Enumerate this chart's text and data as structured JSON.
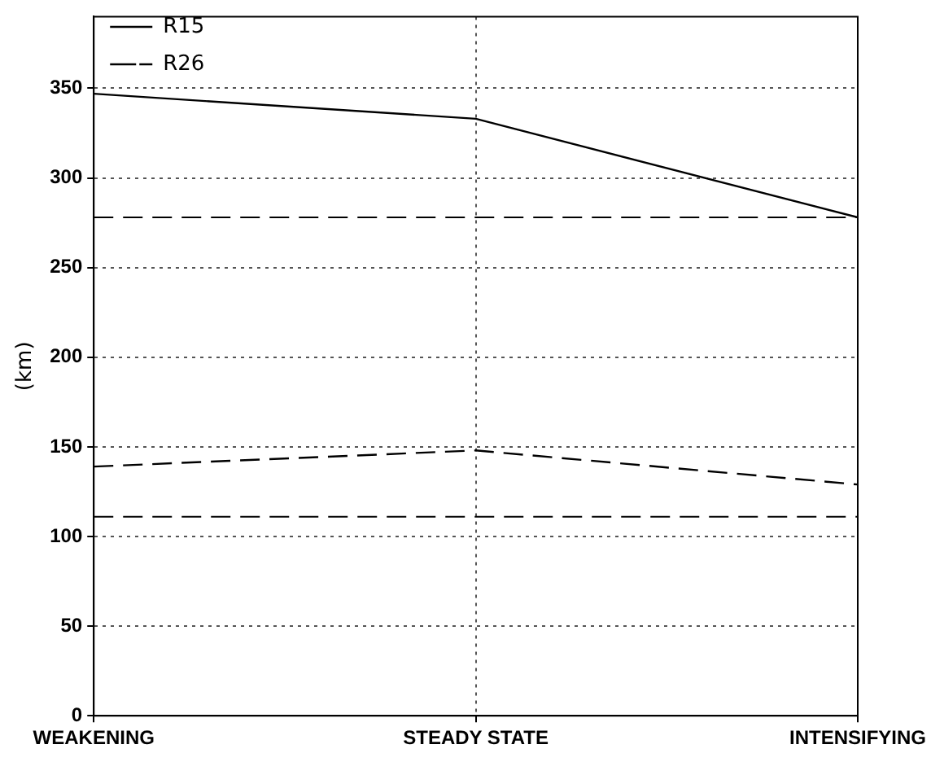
{
  "chart_data": {
    "type": "line",
    "ylabel": "(km)",
    "categories": [
      "WEAKENING",
      "STEADY STATE",
      "INTENSIFYING"
    ],
    "series": [
      {
        "name": "R15",
        "color": "#000000",
        "values": [
          347,
          333,
          278
        ],
        "line_style": "solid"
      },
      {
        "name": "R26",
        "color": "#000000",
        "values": [
          139,
          148,
          129
        ],
        "line_style": "dashed"
      }
    ],
    "ylim": [
      0,
      390
    ],
    "yticks": [
      0,
      50,
      100,
      150,
      200,
      250,
      300,
      350
    ],
    "grid": true,
    "legend": "top left",
    "marker": "none",
    "ref_lines": [
      {
        "axis": "y",
        "value": 278,
        "color": "#000000",
        "line_style": "dashed"
      },
      {
        "axis": "y",
        "value": 111,
        "color": "#000000",
        "line_style": "dashed"
      }
    ]
  }
}
